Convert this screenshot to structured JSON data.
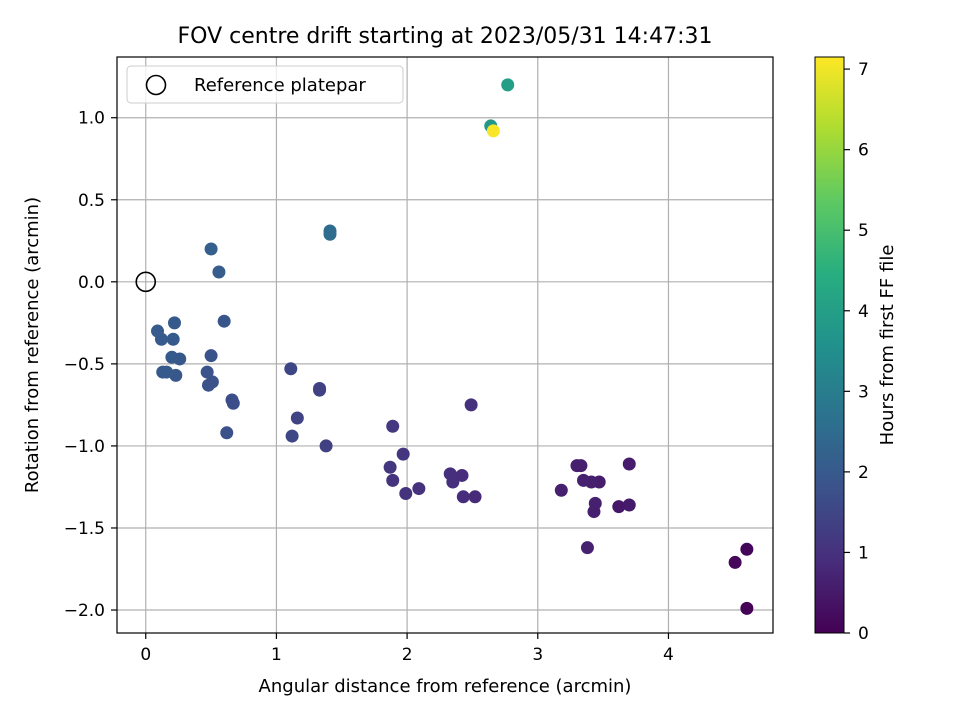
{
  "chart_data": {
    "type": "scatter",
    "title": "FOV centre drift starting at 2023/05/31 14:47:31",
    "xlabel": "Angular distance from reference (arcmin)",
    "ylabel": "Rotation from reference (arcmin)",
    "xlim": [
      -0.22,
      4.8
    ],
    "ylim": [
      -2.14,
      1.37
    ],
    "xticks": [
      0,
      1,
      2,
      3,
      4
    ],
    "yticks": [
      1.0,
      0.5,
      0.0,
      -0.5,
      -1.0,
      -1.5,
      -2.0
    ],
    "xtick_labels": [
      "0",
      "1",
      "2",
      "3",
      "4"
    ],
    "ytick_labels": [
      "1.0",
      "0.5",
      "0.0",
      "−0.5",
      "−1.0",
      "−1.5",
      "−2.0"
    ],
    "grid": true,
    "legend": {
      "position": "upper-left",
      "entries": [
        {
          "label": "Reference platepar",
          "marker": "open-circle"
        }
      ]
    },
    "reference_point": {
      "x": 0.0,
      "y": 0.0
    },
    "colorbar": {
      "label": "Hours from first FF file",
      "colormap": "viridis",
      "range": [
        0,
        7.15
      ],
      "ticks": [
        0,
        1,
        2,
        3,
        4,
        5,
        6,
        7
      ],
      "tick_labels": [
        "0",
        "1",
        "2",
        "3",
        "4",
        "5",
        "6",
        "7"
      ]
    },
    "points": [
      {
        "x": 4.6,
        "y": -1.99,
        "c": 0.05
      },
      {
        "x": 4.6,
        "y": -1.63,
        "c": 0.1
      },
      {
        "x": 4.51,
        "y": -1.71,
        "c": 0.15
      },
      {
        "x": 3.7,
        "y": -1.36,
        "c": 0.5
      },
      {
        "x": 3.7,
        "y": -1.11,
        "c": 0.55
      },
      {
        "x": 3.62,
        "y": -1.37,
        "c": 0.45
      },
      {
        "x": 3.47,
        "y": -1.22,
        "c": 0.55
      },
      {
        "x": 3.44,
        "y": -1.35,
        "c": 0.65
      },
      {
        "x": 3.43,
        "y": -1.4,
        "c": 0.6
      },
      {
        "x": 3.41,
        "y": -1.22,
        "c": 0.6
      },
      {
        "x": 3.38,
        "y": -1.62,
        "c": 0.65
      },
      {
        "x": 3.35,
        "y": -1.21,
        "c": 0.65
      },
      {
        "x": 3.33,
        "y": -1.12,
        "c": 0.6
      },
      {
        "x": 3.3,
        "y": -1.12,
        "c": 0.6
      },
      {
        "x": 3.18,
        "y": -1.27,
        "c": 0.65
      },
      {
        "x": 2.52,
        "y": -1.31,
        "c": 0.85
      },
      {
        "x": 2.49,
        "y": -0.75,
        "c": 1.0
      },
      {
        "x": 2.43,
        "y": -1.31,
        "c": 0.9
      },
      {
        "x": 2.42,
        "y": -1.18,
        "c": 0.9
      },
      {
        "x": 2.35,
        "y": -1.22,
        "c": 0.95
      },
      {
        "x": 2.33,
        "y": -1.17,
        "c": 0.95
      },
      {
        "x": 2.09,
        "y": -1.26,
        "c": 1.0
      },
      {
        "x": 1.99,
        "y": -1.29,
        "c": 1.05
      },
      {
        "x": 1.97,
        "y": -1.05,
        "c": 1.1
      },
      {
        "x": 1.89,
        "y": -1.21,
        "c": 1.05
      },
      {
        "x": 1.89,
        "y": -0.88,
        "c": 1.15
      },
      {
        "x": 1.87,
        "y": -1.13,
        "c": 1.1
      },
      {
        "x": 1.38,
        "y": -1.0,
        "c": 1.35
      },
      {
        "x": 1.33,
        "y": -0.65,
        "c": 1.4
      },
      {
        "x": 1.33,
        "y": -0.66,
        "c": 1.4
      },
      {
        "x": 1.16,
        "y": -0.83,
        "c": 1.45
      },
      {
        "x": 1.12,
        "y": -0.94,
        "c": 1.5
      },
      {
        "x": 1.11,
        "y": -0.53,
        "c": 1.5
      },
      {
        "x": 0.66,
        "y": -0.72,
        "c": 1.7
      },
      {
        "x": 0.67,
        "y": -0.74,
        "c": 1.7
      },
      {
        "x": 0.62,
        "y": -0.92,
        "c": 1.75
      },
      {
        "x": 0.6,
        "y": -0.24,
        "c": 1.9
      },
      {
        "x": 0.56,
        "y": 0.06,
        "c": 2.1
      },
      {
        "x": 0.51,
        "y": -0.61,
        "c": 1.8
      },
      {
        "x": 0.5,
        "y": -0.45,
        "c": 1.85
      },
      {
        "x": 0.5,
        "y": 0.2,
        "c": 2.15
      },
      {
        "x": 0.48,
        "y": -0.63,
        "c": 1.8
      },
      {
        "x": 0.47,
        "y": -0.55,
        "c": 1.85
      },
      {
        "x": 0.26,
        "y": -0.47,
        "c": 1.95
      },
      {
        "x": 0.23,
        "y": -0.57,
        "c": 1.95
      },
      {
        "x": 0.22,
        "y": -0.25,
        "c": 2.0
      },
      {
        "x": 0.21,
        "y": -0.35,
        "c": 2.0
      },
      {
        "x": 0.2,
        "y": -0.46,
        "c": 2.0
      },
      {
        "x": 0.16,
        "y": -0.55,
        "c": 2.0
      },
      {
        "x": 0.13,
        "y": -0.55,
        "c": 2.0
      },
      {
        "x": 0.12,
        "y": -0.35,
        "c": 2.05
      },
      {
        "x": 0.09,
        "y": -0.3,
        "c": 2.05
      },
      {
        "x": 1.41,
        "y": 0.31,
        "c": 2.55
      },
      {
        "x": 1.41,
        "y": 0.29,
        "c": 2.55
      },
      {
        "x": 2.64,
        "y": 0.95,
        "c": 3.8
      },
      {
        "x": 2.77,
        "y": 1.2,
        "c": 4.0
      },
      {
        "x": 2.66,
        "y": 0.92,
        "c": 7.1
      }
    ]
  }
}
